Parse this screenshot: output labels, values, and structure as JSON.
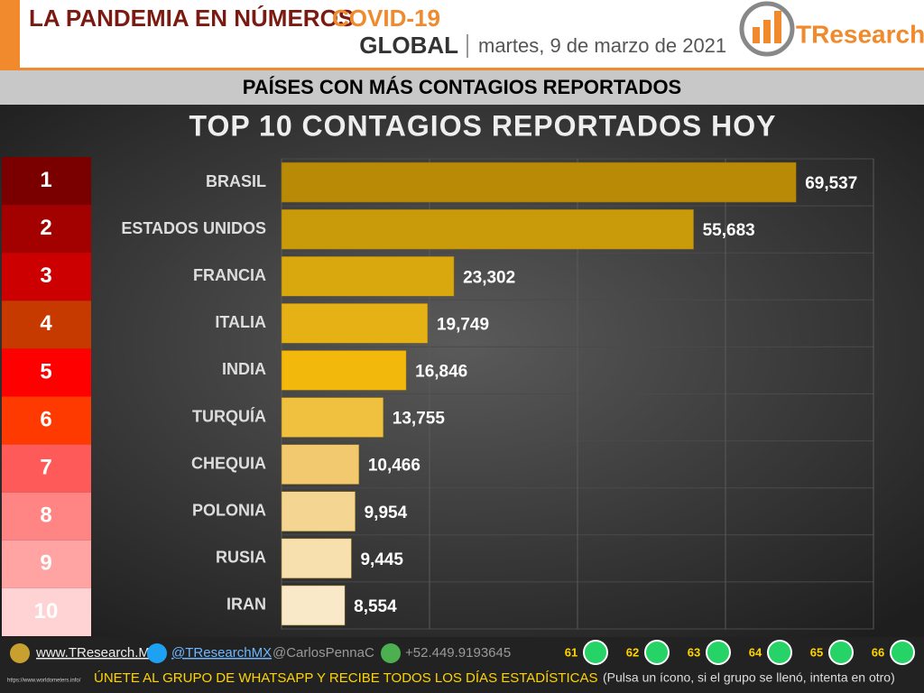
{
  "header": {
    "title": "LA PANDEMIA EN NÚMEROS",
    "topic": "COVID-19",
    "scope": "GLOBAL",
    "date": "martes, 9 de marzo de 2021",
    "logo": "TResearch"
  },
  "banner": "PAÍSES CON MÁS CONTAGIOS REPORTADOS",
  "ranks": {
    "labels": [
      "1",
      "2",
      "3",
      "4",
      "5",
      "6",
      "7",
      "8",
      "9",
      "10"
    ],
    "colors": [
      "#7a0000",
      "#a30000",
      "#cc0000",
      "#c63a00",
      "#ff0000",
      "#ff3a00",
      "#ff5a5a",
      "#ff8585",
      "#ffa3a3",
      "#ffd3d3"
    ]
  },
  "chart_data": {
    "type": "bar",
    "orientation": "horizontal",
    "title": "TOP 10 CONTAGIOS REPORTADOS HOY",
    "categories": [
      "BRASIL",
      "ESTADOS UNIDOS",
      "FRANCIA",
      "ITALIA",
      "INDIA",
      "TURQUÍA",
      "CHEQUIA",
      "POLONIA",
      "RUSIA",
      "IRAN"
    ],
    "values": [
      69537,
      55683,
      23302,
      19749,
      16846,
      13755,
      10466,
      9954,
      9445,
      8554
    ],
    "value_labels": [
      "69,537",
      "55,683",
      "23,302",
      "19,749",
      "16,846",
      "13,755",
      "10,466",
      "9,954",
      "9,445",
      "8,554"
    ],
    "colors": [
      "#b88a06",
      "#c99a0a",
      "#d9a80f",
      "#e6b114",
      "#f2b90c",
      "#f0c13f",
      "#f2c96f",
      "#f5d592",
      "#f7dfae",
      "#f9e9c9"
    ],
    "xlim": [
      0,
      80000
    ],
    "xticks": [
      0,
      20000,
      40000,
      60000,
      80000
    ],
    "grid": true
  },
  "footer": {
    "site": "www.TResearch.Mx",
    "twitter": "@TResearchMX",
    "twitter2": "@CarlosPennaC",
    "phone": "+52.449.9193645",
    "groups": [
      "61",
      "62",
      "63",
      "64",
      "65",
      "66"
    ],
    "cta": "ÚNETE AL GRUPO DE WHATSAPP Y RECIBE TODOS LOS DÍAS ESTADÍSTICAS",
    "note": "(Pulsa un ícono, si el grupo se llenó, intenta en otro)",
    "source": "https://www.worldometers.info/"
  }
}
